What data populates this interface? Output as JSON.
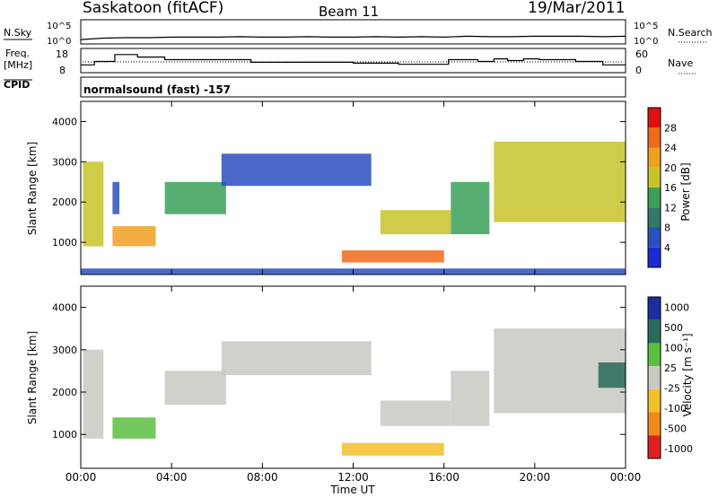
{
  "header": {
    "station": "Saskatoon (fitACF)",
    "beam": "Beam 11",
    "date": "19/Mar/2011"
  },
  "side_labels": {
    "nsky": "N.Sky",
    "freq_line1": "Freq.",
    "freq_line2": "[MHz]",
    "cpid": "CPID",
    "nsearch": "N.Search",
    "nave": "Nave",
    "cpid_value": "normalsound (fast) -157"
  },
  "noise_axis": {
    "top": "10^5",
    "bottom": "10^0",
    "right_top": "10^5",
    "right_bottom": "10^0"
  },
  "freq_axis": {
    "left_ticks": [
      "18",
      "8"
    ],
    "right_ticks": [
      "60",
      "0"
    ]
  },
  "x_axis": {
    "label": "Time UT",
    "ticks": [
      "00:00",
      "04:00",
      "08:00",
      "12:00",
      "16:00",
      "20:00",
      "00:00"
    ]
  },
  "colors": {
    "axis": "#000000",
    "background": "#ffffff"
  },
  "chart_data": [
    {
      "type": "line",
      "panel": "noise",
      "x": [
        0,
        1,
        2,
        3,
        4,
        5,
        6,
        7,
        8,
        9,
        10,
        11,
        12,
        13,
        14,
        15,
        16,
        17,
        18,
        19,
        20,
        21,
        22,
        23,
        24
      ],
      "series": [
        {
          "name": "N.Sky",
          "values": [
            0.9,
            1.2,
            1.3,
            1.3,
            1.4,
            1.4,
            1.4,
            1.5,
            1.4,
            1.4,
            1.5,
            1.4,
            1.4,
            1.5,
            1.4,
            1.5,
            1.4,
            1.6,
            1.5,
            1.5,
            1.6,
            1.6,
            1.6,
            1.5,
            1.6
          ]
        }
      ]
    },
    {
      "type": "line",
      "panel": "frequency",
      "x": [
        0,
        0.6,
        1.5,
        2.5,
        3.7,
        7.5,
        12,
        14,
        16.2,
        17.5,
        18.2,
        18.8,
        19.5,
        20.2,
        21.8,
        23,
        24
      ],
      "series": [
        {
          "name": "Freq.",
          "values": [
            10.5,
            12.5,
            16.5,
            15,
            13.5,
            12,
            11.5,
            10.8,
            13.5,
            12.5,
            14,
            13,
            14,
            13.5,
            12.5,
            10.5,
            10.5
          ]
        }
      ]
    },
    {
      "type": "heatmap",
      "panel": "power",
      "xlabel": "Time UT",
      "ylabel": "Slant Range [km]",
      "xlim": [
        0,
        24
      ],
      "ylim": [
        200,
        4500
      ],
      "yticks": [
        1000,
        2000,
        3000,
        4000
      ],
      "colorbar": {
        "label": "Power [dB]",
        "ticks": [
          4,
          8,
          12,
          16,
          20,
          24,
          28
        ]
      },
      "regions": [
        {
          "t": [
            0.1,
            1.0
          ],
          "r": [
            900,
            3000
          ],
          "level": 18
        },
        {
          "t": [
            1.4,
            3.3
          ],
          "r": [
            900,
            1400
          ],
          "level": 22
        },
        {
          "t": [
            1.4,
            1.7
          ],
          "r": [
            1700,
            2500
          ],
          "level": 6
        },
        {
          "t": [
            3.7,
            6.4
          ],
          "r": [
            1700,
            2500
          ],
          "level": 14
        },
        {
          "t": [
            6.2,
            12.8
          ],
          "r": [
            2400,
            3200
          ],
          "level": 5
        },
        {
          "t": [
            13.2,
            16.3
          ],
          "r": [
            1200,
            1800
          ],
          "level": 16
        },
        {
          "t": [
            11.5,
            16.0
          ],
          "r": [
            500,
            800
          ],
          "level": 24
        },
        {
          "t": [
            16.3,
            18.0
          ],
          "r": [
            1200,
            2500
          ],
          "level": 13
        },
        {
          "t": [
            18.2,
            24.0
          ],
          "r": [
            1500,
            3500
          ],
          "level": 17
        },
        {
          "t": [
            0.0,
            24.0
          ],
          "r": [
            200,
            350
          ],
          "level": 5
        }
      ]
    },
    {
      "type": "heatmap",
      "panel": "velocity",
      "xlabel": "Time UT",
      "ylabel": "Slant Range [km]",
      "xlim": [
        0,
        24
      ],
      "ylim": [
        200,
        4500
      ],
      "yticks": [
        1000,
        2000,
        3000,
        4000
      ],
      "colorbar": {
        "label": "Velocity [m s^-1]",
        "ticks": [
          "1000",
          "500",
          "100",
          "25",
          "-25",
          "-100",
          "-500",
          "-1000"
        ]
      },
      "regions": [
        {
          "t": [
            0.1,
            1.0
          ],
          "r": [
            900,
            3000
          ],
          "value": 0
        },
        {
          "t": [
            1.4,
            3.3
          ],
          "r": [
            900,
            1400
          ],
          "value": 150
        },
        {
          "t": [
            3.7,
            6.4
          ],
          "r": [
            1700,
            2500
          ],
          "value": 0
        },
        {
          "t": [
            6.2,
            12.8
          ],
          "r": [
            2400,
            3200
          ],
          "value": 0
        },
        {
          "t": [
            13.2,
            16.3
          ],
          "r": [
            1200,
            1800
          ],
          "value": 0
        },
        {
          "t": [
            11.5,
            16.0
          ],
          "r": [
            500,
            800
          ],
          "value": -150
        },
        {
          "t": [
            16.3,
            18.0
          ],
          "r": [
            1200,
            2500
          ],
          "value": 0
        },
        {
          "t": [
            18.2,
            24.0
          ],
          "r": [
            1500,
            3500
          ],
          "value": 0
        },
        {
          "t": [
            22.8,
            24.0
          ],
          "r": [
            2100,
            2700
          ],
          "value": 300
        }
      ]
    }
  ]
}
